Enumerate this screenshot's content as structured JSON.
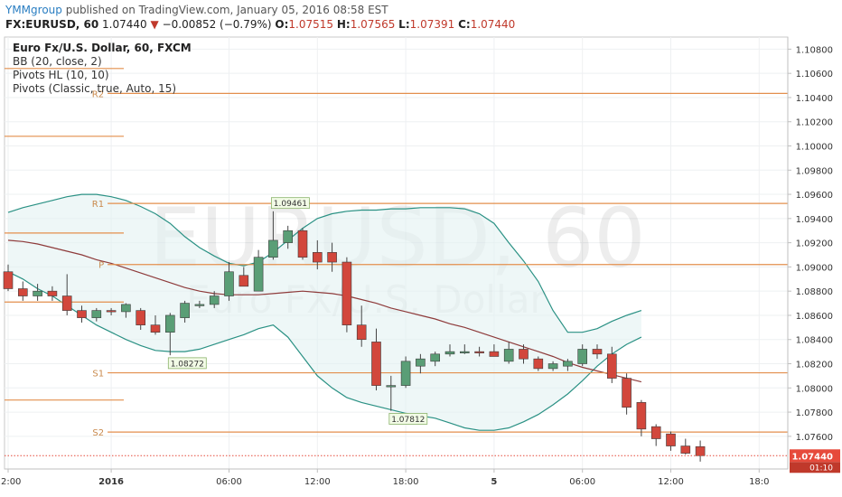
{
  "header": {
    "publisher": "YMMgroup",
    "published_text": "published on TradingView.com, January 05, 2016 08:58 EST",
    "symbol_tf": "FX:EURUSD, 60",
    "last": "1.07440",
    "arrow": "▼",
    "change": "−0.00852 (−0.79%)",
    "o_label": "O:",
    "o_value": "1.07515",
    "h_label": "H:",
    "h_value": "1.07565",
    "l_label": "L:",
    "l_value": "1.07391",
    "c_label": "C:",
    "c_value": "1.07440"
  },
  "legend": {
    "title": "Euro Fx/U.S. Dollar, 60, FXCM",
    "bb": "BB (20, close, 2)",
    "pivots_hl": "Pivots HL (10, 10)",
    "pivots_classic": "Pivots (Classic, true, Auto, 15)"
  },
  "watermark": {
    "main": "EURUSD, 60",
    "sub": "Euro FX/U.S. Dollar"
  },
  "colors": {
    "up": "#5a9e76",
    "down": "#d2473c",
    "pivot": "#e38f4d",
    "bb_band": "#2a9184",
    "bb_basis": "#8e3b3b",
    "fill": "#e2f1f1",
    "last_price_bg": "#e64a3b"
  },
  "chart_data": {
    "type": "candlestick",
    "ylim": [
      1.0733,
      1.109
    ],
    "y_ticks": [
      "1.10800",
      "1.10600",
      "1.10400",
      "1.10200",
      "1.10000",
      "1.09800",
      "1.09600",
      "1.09400",
      "1.09200",
      "1.09000",
      "1.08800",
      "1.08600",
      "1.08400",
      "1.08200",
      "1.08000",
      "1.07800",
      "1.07600"
    ],
    "x_ticks": [
      {
        "i": 0,
        "label": "12:00",
        "bold": false
      },
      {
        "i": 7,
        "label": "2016",
        "bold": true
      },
      {
        "i": 15,
        "label": "06:00",
        "bold": false
      },
      {
        "i": 21,
        "label": "12:00",
        "bold": false
      },
      {
        "i": 27,
        "label": "18:00",
        "bold": false
      },
      {
        "i": 33,
        "label": "5",
        "bold": true
      },
      {
        "i": 39,
        "label": "06:00",
        "bold": false
      },
      {
        "i": 45,
        "label": "12:00",
        "bold": false
      },
      {
        "i": 51,
        "label": "18:0",
        "bold": false
      }
    ],
    "candles": [
      {
        "o": 1.0896,
        "h": 1.0902,
        "l": 1.088,
        "c": 1.0882
      },
      {
        "o": 1.0882,
        "h": 1.0888,
        "l": 1.0872,
        "c": 1.0876
      },
      {
        "o": 1.0876,
        "h": 1.0886,
        "l": 1.0872,
        "c": 1.088
      },
      {
        "o": 1.088,
        "h": 1.0884,
        "l": 1.0872,
        "c": 1.0876
      },
      {
        "o": 1.0876,
        "h": 1.0894,
        "l": 1.086,
        "c": 1.0864
      },
      {
        "o": 1.0864,
        "h": 1.0868,
        "l": 1.0854,
        "c": 1.0858
      },
      {
        "o": 1.0858,
        "h": 1.0866,
        "l": 1.0855,
        "c": 1.0864
      },
      {
        "o": 1.0864,
        "h": 1.0866,
        "l": 1.086,
        "c": 1.0863
      },
      {
        "o": 1.0863,
        "h": 1.087,
        "l": 1.0858,
        "c": 1.0869
      },
      {
        "o": 1.0864,
        "h": 1.0866,
        "l": 1.0848,
        "c": 1.0852
      },
      {
        "o": 1.0852,
        "h": 1.086,
        "l": 1.0844,
        "c": 1.0846
      },
      {
        "o": 1.0846,
        "h": 1.0862,
        "l": 1.0827,
        "c": 1.086
      },
      {
        "o": 1.0858,
        "h": 1.0872,
        "l": 1.0854,
        "c": 1.087
      },
      {
        "o": 1.0869,
        "h": 1.0872,
        "l": 1.0866,
        "c": 1.0869
      },
      {
        "o": 1.0869,
        "h": 1.088,
        "l": 1.0866,
        "c": 1.0876
      },
      {
        "o": 1.0876,
        "h": 1.0904,
        "l": 1.0872,
        "c": 1.0896
      },
      {
        "o": 1.0893,
        "h": 1.09,
        "l": 1.0884,
        "c": 1.0884
      },
      {
        "o": 1.088,
        "h": 1.0914,
        "l": 1.088,
        "c": 1.0908
      },
      {
        "o": 1.0908,
        "h": 1.0946,
        "l": 1.0906,
        "c": 1.0922
      },
      {
        "o": 1.092,
        "h": 1.0934,
        "l": 1.0915,
        "c": 1.093
      },
      {
        "o": 1.093,
        "h": 1.0932,
        "l": 1.0906,
        "c": 1.0908
      },
      {
        "o": 1.0912,
        "h": 1.0922,
        "l": 1.0898,
        "c": 1.0904
      },
      {
        "o": 1.0912,
        "h": 1.092,
        "l": 1.0896,
        "c": 1.0904
      },
      {
        "o": 1.0904,
        "h": 1.0908,
        "l": 1.0846,
        "c": 1.0852
      },
      {
        "o": 1.0852,
        "h": 1.0868,
        "l": 1.0834,
        "c": 1.084
      },
      {
        "o": 1.0838,
        "h": 1.0849,
        "l": 1.0798,
        "c": 1.0802
      },
      {
        "o": 1.0802,
        "h": 1.081,
        "l": 1.0781,
        "c": 1.0802
      },
      {
        "o": 1.0802,
        "h": 1.0826,
        "l": 1.08,
        "c": 1.0822
      },
      {
        "o": 1.0818,
        "h": 1.0828,
        "l": 1.0812,
        "c": 1.0824
      },
      {
        "o": 1.0822,
        "h": 1.083,
        "l": 1.0818,
        "c": 1.0828
      },
      {
        "o": 1.0828,
        "h": 1.0836,
        "l": 1.0826,
        "c": 1.083
      },
      {
        "o": 1.083,
        "h": 1.0836,
        "l": 1.0828,
        "c": 1.083
      },
      {
        "o": 1.083,
        "h": 1.0834,
        "l": 1.0826,
        "c": 1.0829
      },
      {
        "o": 1.083,
        "h": 1.0836,
        "l": 1.0826,
        "c": 1.0826
      },
      {
        "o": 1.0822,
        "h": 1.0838,
        "l": 1.082,
        "c": 1.0832
      },
      {
        "o": 1.0832,
        "h": 1.0836,
        "l": 1.082,
        "c": 1.0824
      },
      {
        "o": 1.0824,
        "h": 1.0826,
        "l": 1.0814,
        "c": 1.0816
      },
      {
        "o": 1.0816,
        "h": 1.0822,
        "l": 1.0814,
        "c": 1.082
      },
      {
        "o": 1.0818,
        "h": 1.0824,
        "l": 1.0814,
        "c": 1.0822
      },
      {
        "o": 1.082,
        "h": 1.0836,
        "l": 1.0818,
        "c": 1.0832
      },
      {
        "o": 1.0832,
        "h": 1.0836,
        "l": 1.0824,
        "c": 1.0828
      },
      {
        "o": 1.0828,
        "h": 1.0834,
        "l": 1.0804,
        "c": 1.0808
      },
      {
        "o": 1.0808,
        "h": 1.0812,
        "l": 1.0778,
        "c": 1.0784
      },
      {
        "o": 1.0788,
        "h": 1.079,
        "l": 1.076,
        "c": 1.0766
      },
      {
        "o": 1.0768,
        "h": 1.077,
        "l": 1.0752,
        "c": 1.0758
      },
      {
        "o": 1.0762,
        "h": 1.0764,
        "l": 1.0748,
        "c": 1.0752
      },
      {
        "o": 1.0752,
        "h": 1.0758,
        "l": 1.0745,
        "c": 1.0746
      },
      {
        "o": 1.07515,
        "h": 1.07565,
        "l": 1.07391,
        "c": 1.0744
      }
    ],
    "bb_upper": [
      1.0945,
      1.0949,
      1.0952,
      1.0955,
      1.0958,
      1.096,
      1.096,
      1.0958,
      1.0955,
      1.095,
      1.0944,
      1.0936,
      1.0925,
      1.0916,
      1.0909,
      1.0903,
      1.0901,
      1.0904,
      1.0912,
      1.0922,
      1.0932,
      1.094,
      1.0944,
      1.0946,
      1.0947,
      1.0947,
      1.0948,
      1.0948,
      1.0949,
      1.0949,
      1.0949,
      1.0948,
      1.0944,
      1.0936,
      1.092,
      1.0905,
      1.0888,
      1.0864,
      1.0846,
      1.0846,
      1.0849,
      1.0855,
      1.086,
      1.0864
    ],
    "bb_basis": [
      1.0922,
      1.0921,
      1.0919,
      1.0916,
      1.0913,
      1.091,
      1.0906,
      1.0903,
      1.0899,
      1.0895,
      1.0891,
      1.0887,
      1.0883,
      1.088,
      1.0878,
      1.0877,
      1.0877,
      1.0877,
      1.0878,
      1.0879,
      1.088,
      1.0879,
      1.0878,
      1.0876,
      1.0873,
      1.087,
      1.0866,
      1.0863,
      1.086,
      1.0857,
      1.0853,
      1.085,
      1.0846,
      1.0842,
      1.0838,
      1.0834,
      1.083,
      1.0826,
      1.0821,
      1.0817,
      1.0814,
      1.0811,
      1.0808,
      1.0805
    ],
    "bb_lower": [
      1.0896,
      1.089,
      1.0882,
      1.0876,
      1.0868,
      1.086,
      1.0852,
      1.0846,
      1.084,
      1.0835,
      1.0831,
      1.083,
      1.083,
      1.0832,
      1.0836,
      1.084,
      1.0844,
      1.0849,
      1.0852,
      1.0842,
      1.0826,
      1.081,
      1.08,
      1.0792,
      1.0788,
      1.0785,
      1.0782,
      1.0779,
      1.0777,
      1.0775,
      1.0771,
      1.0767,
      1.0765,
      1.0765,
      1.0767,
      1.0772,
      1.0778,
      1.0786,
      1.0795,
      1.0806,
      1.0818,
      1.0828,
      1.0836,
      1.0842
    ],
    "pivot_lines": [
      {
        "label": "R2",
        "value": 1.10434,
        "from": 7
      },
      {
        "label": "R1",
        "value": 1.09525,
        "from": 7
      },
      {
        "label": "P",
        "value": 1.0902,
        "from": 7
      },
      {
        "label": "S1",
        "value": 1.08125,
        "from": 7
      },
      {
        "label": "S2",
        "value": 1.07635,
        "from": 7
      }
    ],
    "prev_pivot_lines": [
      1.1064,
      1.1008,
      1.0928,
      1.0871,
      1.079
    ],
    "pivot_hl_labels": [
      {
        "i": 18,
        "text": "1.09461",
        "value": 1.09461,
        "pos": "above"
      },
      {
        "i": 11,
        "text": "1.08272",
        "value": 1.08272,
        "pos": "below"
      },
      {
        "i": 26,
        "text": "1.07812",
        "value": 1.07812,
        "pos": "below"
      }
    ],
    "last_price": {
      "value": 1.0744,
      "label": "1.07440",
      "countdown": "01:10"
    }
  }
}
